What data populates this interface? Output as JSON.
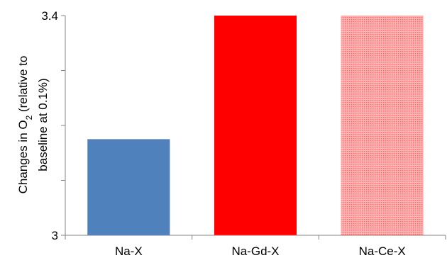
{
  "chart_data": {
    "type": "bar",
    "title": "",
    "xlabel": "",
    "ylabel": {
      "line1_prefix": "Changes in O",
      "line1_subscript": "2",
      "line1_suffix": " (relative to",
      "line2": "baseline at 0.1%)"
    },
    "categories": [
      "Na-X",
      "Na-Gd-X",
      "Na-Ce-X"
    ],
    "values": [
      3.175,
      3.4,
      3.4
    ],
    "ylim": [
      3,
      3.4
    ],
    "y_ticks": [
      3,
      3.1,
      3.2,
      3.3,
      3.4
    ],
    "y_tick_labels": [
      "3",
      "",
      "",
      "",
      "3.4"
    ],
    "grid": false,
    "legend": "none",
    "bar_styles": [
      {
        "fill": "#4f81bd",
        "pattern": "solid"
      },
      {
        "fill": "#ff0000",
        "pattern": "solid"
      },
      {
        "fill": "#ffb3b3",
        "pattern": "dotted",
        "dot_color": "#ff6666"
      }
    ]
  }
}
